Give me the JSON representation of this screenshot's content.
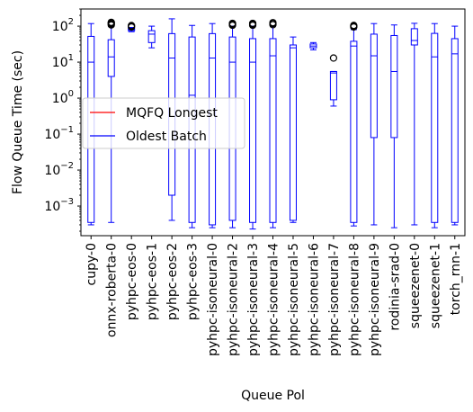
{
  "chart_data": {
    "type": "boxplot",
    "xlabel": "Queue Pol",
    "ylabel": "Flow Queue Time (sec)",
    "yscale": "log",
    "ylim": [
      0.00015,
      300
    ],
    "yticks": [
      {
        "value": 0.001,
        "base": "10",
        "exp": "−3"
      },
      {
        "value": 0.01,
        "base": "10",
        "exp": "−2"
      },
      {
        "value": 0.1,
        "base": "10",
        "exp": "−1"
      },
      {
        "value": 1,
        "base": "10",
        "exp": "0"
      },
      {
        "value": 10,
        "base": "10",
        "exp": "1"
      },
      {
        "value": 100,
        "base": "10",
        "exp": "2"
      }
    ],
    "grid": false,
    "legend_position": "center-left",
    "colors": {
      "MQFQ Longest": "#ff0000",
      "Oldest Batch": "#0000ff",
      "outlier": "#000000"
    },
    "legend": [
      "MQFQ Longest",
      "Oldest Batch"
    ],
    "categories": [
      "cupy-0",
      "onnx-roberta-0",
      "pyhpc-eos-0",
      "pyhpc-eos-1",
      "pyhpc-eos-2",
      "pyhpc-eos-3",
      "pyhpc-isoneural-0",
      "pyhpc-isoneural-2",
      "pyhpc-isoneural-3",
      "pyhpc-isoneural-4",
      "pyhpc-isoneural-5",
      "pyhpc-isoneural-6",
      "pyhpc-isoneural-7",
      "pyhpc-isoneural-8",
      "pyhpc-isoneural-9",
      "rodinia-srad-0",
      "squeezenet-0",
      "squeezenet-1",
      "torch_rnn-1"
    ],
    "series": [
      {
        "name": "Oldest Batch",
        "boxes": [
          {
            "min": 0.0003,
            "q1": 0.00035,
            "median": 10,
            "q3": 52,
            "max": 118,
            "outliers": []
          },
          {
            "min": 0.00035,
            "q1": 4,
            "median": 14,
            "q3": 42,
            "max": 100,
            "outliers": [
              108,
              115,
              122,
              128
            ]
          },
          {
            "min": 70,
            "q1": 75,
            "median": 80,
            "q3": 88,
            "max": 92,
            "outliers": [
              95,
              100,
              104
            ]
          },
          {
            "min": 25,
            "q1": 35,
            "median": 60,
            "q3": 75,
            "max": 100,
            "outliers": []
          },
          {
            "min": 0.0004,
            "q1": 0.002,
            "median": 13,
            "q3": 62,
            "max": 160,
            "outliers": []
          },
          {
            "min": 0.00025,
            "q1": 0.00035,
            "median": 1.2,
            "q3": 50,
            "max": 105,
            "outliers": []
          },
          {
            "min": 0.00025,
            "q1": 0.0003,
            "median": 13,
            "q3": 62,
            "max": 118,
            "outliers": []
          },
          {
            "min": 0.00025,
            "q1": 0.0004,
            "median": 10,
            "q3": 50,
            "max": 100,
            "outliers": [
              106,
              110,
              115,
              120
            ]
          },
          {
            "min": 0.00023,
            "q1": 0.00035,
            "median": 10,
            "q3": 45,
            "max": 100,
            "outliers": [
              106,
              110,
              115,
              120
            ]
          },
          {
            "min": 0.00025,
            "q1": 0.00035,
            "median": 15,
            "q3": 45,
            "max": 100,
            "outliers": [
              110,
              118,
              125
            ]
          },
          {
            "min": 0.00035,
            "q1": 0.0004,
            "median": 25,
            "q3": 30,
            "max": 50,
            "outliers": []
          },
          {
            "min": 22,
            "q1": 25,
            "median": 28,
            "q3": 32,
            "max": 35,
            "outliers": []
          },
          {
            "min": 0.6,
            "q1": 0.9,
            "median": 5,
            "q3": 5.5,
            "max": 5.5,
            "outliers": [
              13
            ]
          },
          {
            "min": 0.00028,
            "q1": 0.00035,
            "median": 28,
            "q3": 38,
            "max": 80,
            "outliers": [
              95,
              100,
              105
            ]
          },
          {
            "min": 0.0003,
            "q1": 0.08,
            "median": 15,
            "q3": 60,
            "max": 118,
            "outliers": []
          },
          {
            "min": 0.00025,
            "q1": 0.08,
            "median": 5.5,
            "q3": 55,
            "max": 108,
            "outliers": []
          },
          {
            "min": 0.0003,
            "q1": 30,
            "median": 40,
            "q3": 85,
            "max": 120,
            "outliers": []
          },
          {
            "min": 0.00025,
            "q1": 0.00035,
            "median": 14,
            "q3": 63,
            "max": 118,
            "outliers": []
          },
          {
            "min": 0.0003,
            "q1": 0.00035,
            "median": 17,
            "q3": 45,
            "max": 100,
            "outliers": []
          }
        ]
      }
    ]
  }
}
